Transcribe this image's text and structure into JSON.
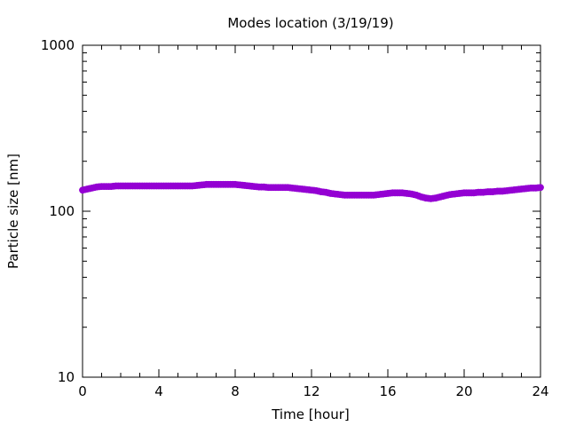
{
  "chart_data": {
    "type": "scatter",
    "title": "Modes location (3/19/19)",
    "xlabel": "Time [hour]",
    "ylabel": "Particle size [nm]",
    "xlim": [
      0,
      24
    ],
    "ylim": [
      10,
      1000
    ],
    "y_scale": "log",
    "x_ticks": [
      0,
      4,
      8,
      12,
      16,
      20,
      24
    ],
    "y_ticks": [
      10,
      100,
      1000
    ],
    "grid": false,
    "legend": "none",
    "marker_color": "#9400D3",
    "series": [
      {
        "x": [
          0.0,
          0.25,
          0.5,
          0.75,
          1.0,
          1.25,
          1.5,
          1.75,
          2.0,
          2.25,
          2.5,
          2.75,
          3.0,
          3.25,
          3.5,
          3.75,
          4.0,
          4.25,
          4.5,
          4.75,
          5.0,
          5.25,
          5.5,
          5.75,
          6.0,
          6.25,
          6.5,
          6.75,
          7.0,
          7.25,
          7.5,
          7.75,
          8.0,
          8.25,
          8.5,
          8.75,
          9.0,
          9.25,
          9.5,
          9.75,
          10.0,
          10.25,
          10.5,
          10.75,
          11.0,
          11.25,
          11.5,
          11.75,
          12.0,
          12.25,
          12.5,
          12.75,
          13.0,
          13.25,
          13.5,
          13.75,
          14.0,
          14.25,
          14.5,
          14.75,
          15.0,
          15.25,
          15.5,
          15.75,
          16.0,
          16.25,
          16.5,
          16.75,
          17.0,
          17.25,
          17.5,
          17.75,
          18.0,
          18.25,
          18.5,
          18.75,
          19.0,
          19.25,
          19.5,
          19.75,
          20.0,
          20.25,
          20.5,
          20.75,
          21.0,
          21.25,
          21.5,
          21.75,
          22.0,
          22.25,
          22.5,
          22.75,
          23.0,
          23.25,
          23.5,
          23.75,
          24.0
        ],
        "y": [
          134,
          136,
          138,
          140,
          141,
          141,
          141,
          142,
          142,
          142,
          142,
          142,
          142,
          142,
          142,
          142,
          142,
          142,
          142,
          142,
          142,
          142,
          142,
          142,
          143,
          144,
          145,
          145,
          145,
          145,
          145,
          145,
          145,
          144,
          143,
          142,
          141,
          140,
          140,
          139,
          139,
          139,
          139,
          139,
          138,
          137,
          136,
          135,
          134,
          133,
          131,
          130,
          128,
          127,
          126,
          125,
          125,
          125,
          125,
          125,
          125,
          125,
          126,
          127,
          128,
          129,
          129,
          129,
          128,
          127,
          125,
          122,
          120,
          119,
          120,
          122,
          124,
          126,
          127,
          128,
          129,
          129,
          129,
          130,
          130,
          131,
          131,
          132,
          132,
          133,
          134,
          135,
          136,
          137,
          138,
          138,
          139
        ]
      }
    ]
  }
}
